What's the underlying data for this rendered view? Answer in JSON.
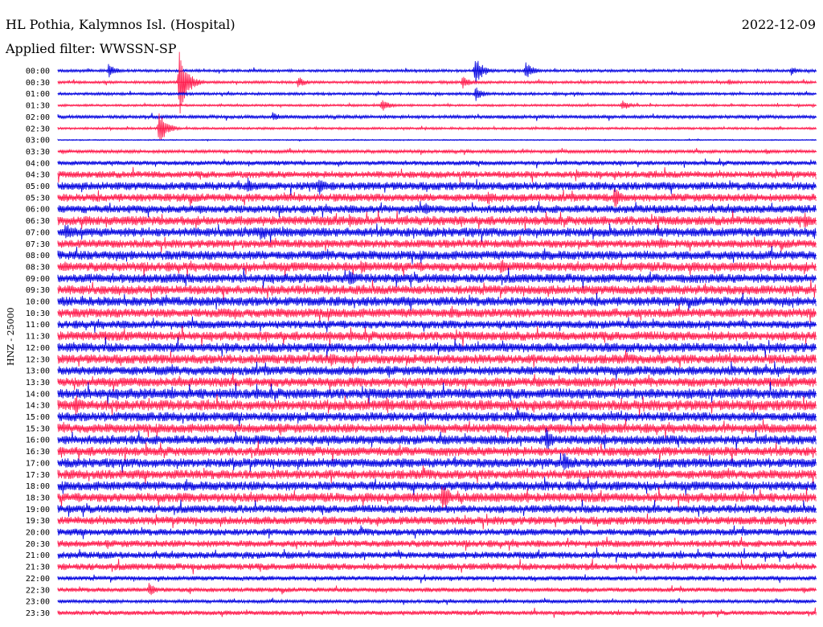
{
  "header": {
    "station": "HL Pothia, Kalymnos Isl. (Hospital)",
    "date": "2022-12-09",
    "filter": "Applied filter: WWSSN-SP"
  },
  "colors": {
    "odd": "#0000e0",
    "even": "#ff1a4c"
  },
  "chart_data": {
    "type": "line",
    "title": "HL Pothia, Kalymnos Isl. (Hospital)",
    "ylabel": "HNZ - 25000",
    "line_interval_minutes": 30,
    "tick_labels": [
      "00:00",
      "00:30",
      "01:00",
      "01:30",
      "02:00",
      "02:30",
      "03:00",
      "03:30",
      "04:00",
      "04:30",
      "05:00",
      "05:30",
      "06:00",
      "06:30",
      "07:00",
      "07:30",
      "08:00",
      "08:30",
      "09:00",
      "09:30",
      "10:00",
      "10:30",
      "11:00",
      "11:30",
      "12:00",
      "12:30",
      "13:00",
      "13:30",
      "14:00",
      "14:30",
      "15:00",
      "15:30",
      "16:00",
      "16:30",
      "17:00",
      "17:30",
      "18:00",
      "18:30",
      "19:00",
      "19:30",
      "20:00",
      "20:30",
      "21:00",
      "21:30",
      "22:00",
      "22:30",
      "23:00",
      "23:30"
    ],
    "noise_level": [
      1.2,
      1.2,
      1.2,
      1.0,
      1.5,
      1.0,
      0.5,
      1.5,
      2.0,
      3.0,
      3.5,
      3.5,
      3.5,
      4.0,
      4.0,
      3.5,
      4.0,
      4.0,
      4.0,
      4.0,
      4.0,
      4.0,
      3.5,
      4.0,
      4.0,
      4.0,
      4.0,
      4.0,
      4.5,
      4.5,
      4.0,
      4.0,
      4.0,
      4.0,
      4.0,
      4.0,
      4.0,
      4.0,
      3.5,
      3.5,
      3.0,
      3.0,
      3.0,
      3.0,
      2.0,
      2.0,
      1.5,
      2.0
    ],
    "events": [
      {
        "trace": "00:00",
        "minute": 2.0,
        "amplitude": 10
      },
      {
        "trace": "00:00",
        "minute": 16.5,
        "amplitude": 20
      },
      {
        "trace": "00:00",
        "minute": 18.5,
        "amplitude": 12
      },
      {
        "trace": "00:00",
        "minute": 29.0,
        "amplitude": 6
      },
      {
        "trace": "00:30",
        "minute": 4.8,
        "amplitude": 45
      },
      {
        "trace": "00:30",
        "minute": 9.5,
        "amplitude": 8
      },
      {
        "trace": "00:30",
        "minute": 16.0,
        "amplitude": 9
      },
      {
        "trace": "00:30",
        "minute": 26.5,
        "amplitude": 5
      },
      {
        "trace": "01:00",
        "minute": 16.5,
        "amplitude": 10
      },
      {
        "trace": "01:30",
        "minute": 12.8,
        "amplitude": 9
      },
      {
        "trace": "01:30",
        "minute": 22.3,
        "amplitude": 8
      },
      {
        "trace": "02:00",
        "minute": 8.5,
        "amplitude": 7
      },
      {
        "trace": "02:30",
        "minute": 4.0,
        "amplitude": 22
      },
      {
        "trace": "03:30",
        "minute": 28.0,
        "amplitude": 4
      },
      {
        "trace": "04:30",
        "minute": 20.5,
        "amplitude": 6
      },
      {
        "trace": "05:00",
        "minute": 7.5,
        "amplitude": 12
      },
      {
        "trace": "05:00",
        "minute": 10.3,
        "amplitude": 14
      },
      {
        "trace": "05:30",
        "minute": 17.0,
        "amplitude": 10
      },
      {
        "trace": "05:30",
        "minute": 22.0,
        "amplitude": 16
      },
      {
        "trace": "06:00",
        "minute": 14.5,
        "amplitude": 10
      },
      {
        "trace": "06:30",
        "minute": 11.5,
        "amplitude": 10
      },
      {
        "trace": "06:30",
        "minute": 29.5,
        "amplitude": 12
      },
      {
        "trace": "07:00",
        "minute": 0.3,
        "amplitude": 14
      },
      {
        "trace": "07:00",
        "minute": 8.0,
        "amplitude": 10
      },
      {
        "trace": "07:30",
        "minute": 23.8,
        "amplitude": 10
      },
      {
        "trace": "08:30",
        "minute": 12.0,
        "amplitude": 12
      },
      {
        "trace": "08:30",
        "minute": 17.5,
        "amplitude": 12
      },
      {
        "trace": "09:00",
        "minute": 11.5,
        "amplitude": 12
      },
      {
        "trace": "12:30",
        "minute": 10.8,
        "amplitude": 12
      },
      {
        "trace": "13:00",
        "minute": 22.5,
        "amplitude": 10
      },
      {
        "trace": "13:30",
        "minute": 4.8,
        "amplitude": 10
      },
      {
        "trace": "14:30",
        "minute": 0.7,
        "amplitude": 14
      },
      {
        "trace": "14:30",
        "minute": 13.0,
        "amplitude": 12
      },
      {
        "trace": "15:30",
        "minute": 21.5,
        "amplitude": 10
      },
      {
        "trace": "16:00",
        "minute": 19.3,
        "amplitude": 16
      },
      {
        "trace": "17:00",
        "minute": 20.0,
        "amplitude": 14
      },
      {
        "trace": "18:30",
        "minute": 15.2,
        "amplitude": 22
      },
      {
        "trace": "20:00",
        "minute": 18.8,
        "amplitude": 6
      },
      {
        "trace": "22:30",
        "minute": 3.6,
        "amplitude": 9
      }
    ]
  }
}
